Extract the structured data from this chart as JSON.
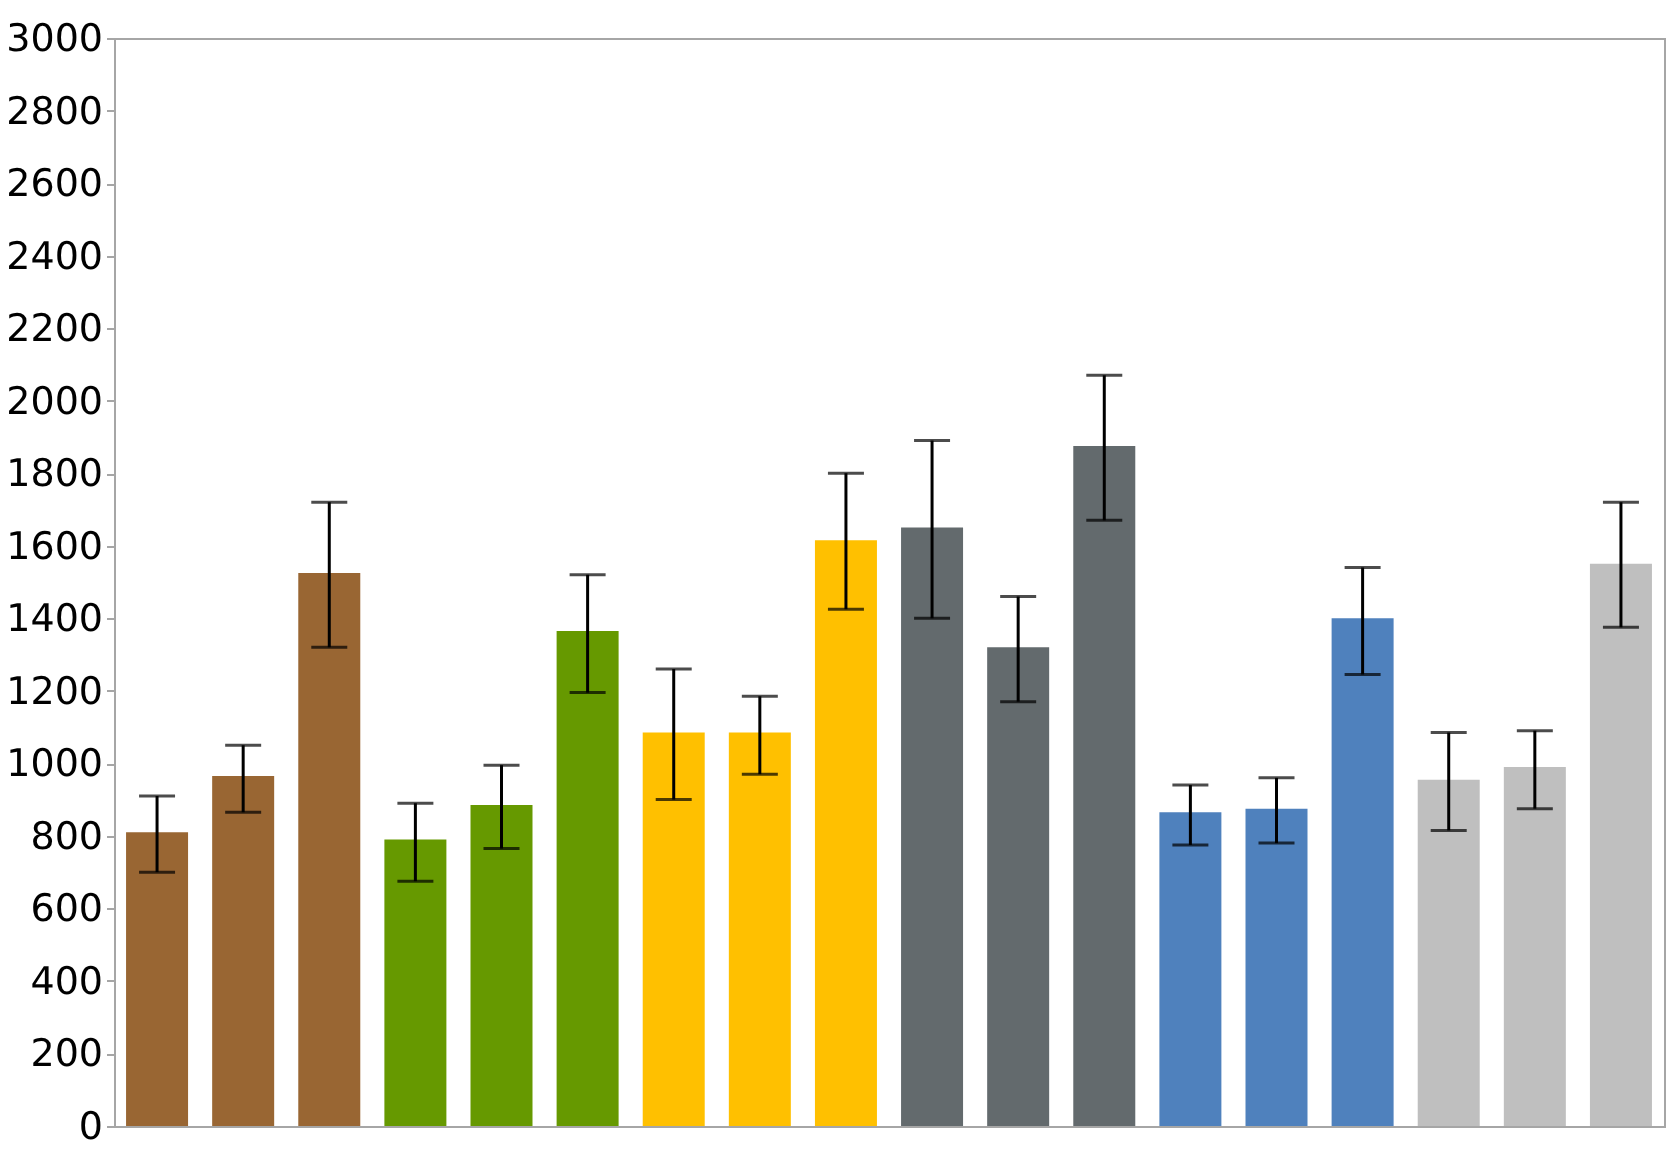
{
  "chart_data": {
    "type": "bar",
    "categories": [
      null,
      null,
      null,
      null,
      null,
      null,
      null,
      null,
      null,
      null,
      null,
      null,
      null,
      null,
      null,
      null,
      null,
      null
    ],
    "values": [
      810,
      965,
      1525,
      790,
      885,
      1365,
      1085,
      1085,
      1615,
      1650,
      1320,
      1875,
      865,
      875,
      1400,
      955,
      990,
      1550
    ],
    "errors": [
      [
        700,
        910
      ],
      [
        865,
        1050
      ],
      [
        1320,
        1720
      ],
      [
        675,
        890
      ],
      [
        765,
        995
      ],
      [
        1195,
        1520
      ],
      [
        900,
        1260
      ],
      [
        970,
        1185
      ],
      [
        1425,
        1800
      ],
      [
        1400,
        1890
      ],
      [
        1170,
        1460
      ],
      [
        1670,
        2070
      ],
      [
        775,
        940
      ],
      [
        780,
        960
      ],
      [
        1245,
        1540
      ],
      [
        815,
        1085
      ],
      [
        875,
        1090
      ],
      [
        1375,
        1720
      ]
    ],
    "colors": [
      "#996633",
      "#996633",
      "#996633",
      "#669900",
      "#669900",
      "#669900",
      "#ffc000",
      "#ffc000",
      "#ffc000",
      "#636a6d",
      "#636a6d",
      "#636a6d",
      "#4f81bd",
      "#4f81bd",
      "#4f81bd",
      "#bfbfbf",
      "#bfbfbf",
      "#bfbfbf"
    ],
    "ylim": [
      0,
      3000
    ],
    "yticks": [
      0,
      200,
      400,
      600,
      800,
      1000,
      1200,
      1400,
      1600,
      1800,
      2000,
      2200,
      2400,
      2600,
      2800,
      3000
    ],
    "tick_labels": "y",
    "grid": false
  }
}
